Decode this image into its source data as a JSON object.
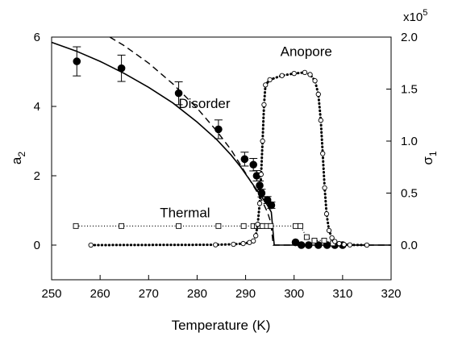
{
  "chart_data": {
    "type": "scatter",
    "xlabel": "Temperature (K)",
    "ylabel_left_base": "a",
    "ylabel_left_sub": "2",
    "ylabel_right_base": "σ",
    "ylabel_right_sub": "1",
    "right_multiplier_base": "x10",
    "right_multiplier_exp": "5",
    "xlim": [
      250,
      320
    ],
    "ylim_left": [
      -1,
      6
    ],
    "ylim_right": [
      -0.3333,
      2.0
    ],
    "xticks": [
      {
        "v": 250,
        "label": "250"
      },
      {
        "v": 260,
        "label": "260"
      },
      {
        "v": 270,
        "label": "270"
      },
      {
        "v": 280,
        "label": "280"
      },
      {
        "v": 290,
        "label": "290"
      },
      {
        "v": 300,
        "label": "300"
      },
      {
        "v": 310,
        "label": "310"
      },
      {
        "v": 320,
        "label": "320"
      }
    ],
    "yticks_left": [
      {
        "v": 0,
        "label": "0"
      },
      {
        "v": 2,
        "label": "2"
      },
      {
        "v": 4,
        "label": "4"
      },
      {
        "v": 6,
        "label": "6"
      }
    ],
    "yticks_right": [
      {
        "v": 0.0,
        "label": "0.0"
      },
      {
        "v": 0.5,
        "label": "0.5"
      },
      {
        "v": 1.0,
        "label": "1.0"
      },
      {
        "v": 1.5,
        "label": "1.5"
      },
      {
        "v": 2.0,
        "label": "2.0"
      }
    ],
    "annotations": [
      {
        "text": "Anopore",
        "x": 302.5,
        "y": 5.45
      },
      {
        "text": "Disorder",
        "x": 281.5,
        "y": 3.95
      },
      {
        "text": "Thermal",
        "x": 277.5,
        "y": 0.8
      }
    ],
    "series": [
      {
        "axis": "left",
        "marker": "filled-circle",
        "color": "#000000",
        "points": [
          {
            "x": 255.2,
            "y": 5.3,
            "err": 0.42
          },
          {
            "x": 264.4,
            "y": 5.1,
            "err": 0.38
          },
          {
            "x": 276.2,
            "y": 4.38,
            "err": 0.33
          },
          {
            "x": 284.4,
            "y": 3.34,
            "err": 0.27
          },
          {
            "x": 289.8,
            "y": 2.48,
            "err": 0.2
          },
          {
            "x": 291.6,
            "y": 2.32,
            "err": 0.18
          },
          {
            "x": 292.3,
            "y": 2.0,
            "err": 0.15
          },
          {
            "x": 292.9,
            "y": 1.72,
            "err": 0.13
          },
          {
            "x": 293.3,
            "y": 1.5,
            "err": 0.11
          },
          {
            "x": 294.5,
            "y": 1.3,
            "err": 0.1
          },
          {
            "x": 295.3,
            "y": 1.15,
            "err": 0.09
          },
          {
            "x": 300.3,
            "y": 0.08
          },
          {
            "x": 301.5,
            "y": 0.0
          },
          {
            "x": 303.0,
            "y": 0.0
          },
          {
            "x": 305.0,
            "y": 0.0
          },
          {
            "x": 306.8,
            "y": 0.0
          },
          {
            "x": 308.4,
            "y": 0.0
          },
          {
            "x": 310.0,
            "y": 0.0
          }
        ]
      },
      {
        "axis": "left",
        "marker": "solid-line",
        "color": "#000000",
        "points": [
          {
            "x": 250,
            "y": 5.85
          },
          {
            "x": 255,
            "y": 5.6
          },
          {
            "x": 260,
            "y": 5.3
          },
          {
            "x": 265,
            "y": 4.95
          },
          {
            "x": 270,
            "y": 4.55
          },
          {
            "x": 275,
            "y": 4.1
          },
          {
            "x": 280,
            "y": 3.55
          },
          {
            "x": 284,
            "y": 3.05
          },
          {
            "x": 287,
            "y": 2.6
          },
          {
            "x": 289,
            "y": 2.25
          },
          {
            "x": 291,
            "y": 1.85
          },
          {
            "x": 292.5,
            "y": 1.55
          },
          {
            "x": 293.5,
            "y": 1.35
          },
          {
            "x": 294.5,
            "y": 1.15
          },
          {
            "x": 295.3,
            "y": 0.95
          },
          {
            "x": 295.9,
            "y": 0.0
          },
          {
            "x": 300,
            "y": 0.0
          },
          {
            "x": 310,
            "y": 0.0
          },
          {
            "x": 320,
            "y": 0.0
          }
        ]
      },
      {
        "axis": "left",
        "marker": "dashed-line",
        "color": "#000000",
        "points": [
          {
            "x": 262,
            "y": 6.0
          },
          {
            "x": 265,
            "y": 5.75
          },
          {
            "x": 270,
            "y": 5.25
          },
          {
            "x": 275,
            "y": 4.65
          },
          {
            "x": 280,
            "y": 3.95
          },
          {
            "x": 284,
            "y": 3.3
          },
          {
            "x": 287,
            "y": 2.75
          },
          {
            "x": 289,
            "y": 2.3
          },
          {
            "x": 291,
            "y": 1.85
          },
          {
            "x": 292.5,
            "y": 1.5
          },
          {
            "x": 293.5,
            "y": 1.25
          },
          {
            "x": 294.5,
            "y": 0.95
          },
          {
            "x": 295.2,
            "y": 0.65
          },
          {
            "x": 295.7,
            "y": 0.0
          },
          {
            "x": 305,
            "y": 0.0
          },
          {
            "x": 320,
            "y": 0.0
          }
        ]
      },
      {
        "axis": "left",
        "marker": "open-square",
        "line": "dotted-thin",
        "color": "#000000",
        "points": [
          {
            "x": 255,
            "y": 0.55
          },
          {
            "x": 264.4,
            "y": 0.55
          },
          {
            "x": 276.2,
            "y": 0.55
          },
          {
            "x": 284.4,
            "y": 0.55
          },
          {
            "x": 289.6,
            "y": 0.55
          },
          {
            "x": 291.6,
            "y": 0.55
          },
          {
            "x": 292.3,
            "y": 0.55
          },
          {
            "x": 292.9,
            "y": 0.55
          },
          {
            "x": 293.5,
            "y": 0.55
          },
          {
            "x": 294.4,
            "y": 0.55
          },
          {
            "x": 295.2,
            "y": 0.55
          },
          {
            "x": 300.3,
            "y": 0.55
          },
          {
            "x": 301.3,
            "y": 0.55
          },
          {
            "x": 302.6,
            "y": 0.23
          },
          {
            "x": 304.2,
            "y": 0.13
          },
          {
            "x": 306.2,
            "y": 0.13
          },
          {
            "x": 308.0,
            "y": 0.05
          }
        ]
      },
      {
        "axis": "right",
        "marker": "open-circle",
        "line": "dotted-thick",
        "color": "#000000",
        "points": [
          {
            "x": 258.1,
            "y": 0.0
          },
          {
            "x": 283.8,
            "y": 0.003
          },
          {
            "x": 287.5,
            "y": 0.008
          },
          {
            "x": 289.5,
            "y": 0.015
          },
          {
            "x": 290.8,
            "y": 0.025
          },
          {
            "x": 291.6,
            "y": 0.04
          },
          {
            "x": 292.1,
            "y": 0.09
          },
          {
            "x": 292.5,
            "y": 0.2
          },
          {
            "x": 292.9,
            "y": 0.4
          },
          {
            "x": 293.2,
            "y": 0.68
          },
          {
            "x": 293.5,
            "y": 1.0
          },
          {
            "x": 293.8,
            "y": 1.35
          },
          {
            "x": 294.1,
            "y": 1.54
          },
          {
            "x": 295.0,
            "y": 1.59
          },
          {
            "x": 297.5,
            "y": 1.63
          },
          {
            "x": 300.0,
            "y": 1.65
          },
          {
            "x": 302.2,
            "y": 1.66
          },
          {
            "x": 303.3,
            "y": 1.64
          },
          {
            "x": 304.3,
            "y": 1.58
          },
          {
            "x": 305.0,
            "y": 1.45
          },
          {
            "x": 305.5,
            "y": 1.2
          },
          {
            "x": 305.9,
            "y": 0.88
          },
          {
            "x": 306.3,
            "y": 0.55
          },
          {
            "x": 306.7,
            "y": 0.3
          },
          {
            "x": 307.2,
            "y": 0.14
          },
          {
            "x": 307.8,
            "y": 0.07
          },
          {
            "x": 308.4,
            "y": 0.035
          },
          {
            "x": 309.3,
            "y": 0.015
          },
          {
            "x": 310.3,
            "y": 0.006
          },
          {
            "x": 311.5,
            "y": 0.002
          },
          {
            "x": 315.0,
            "y": 0.0
          }
        ]
      }
    ]
  }
}
